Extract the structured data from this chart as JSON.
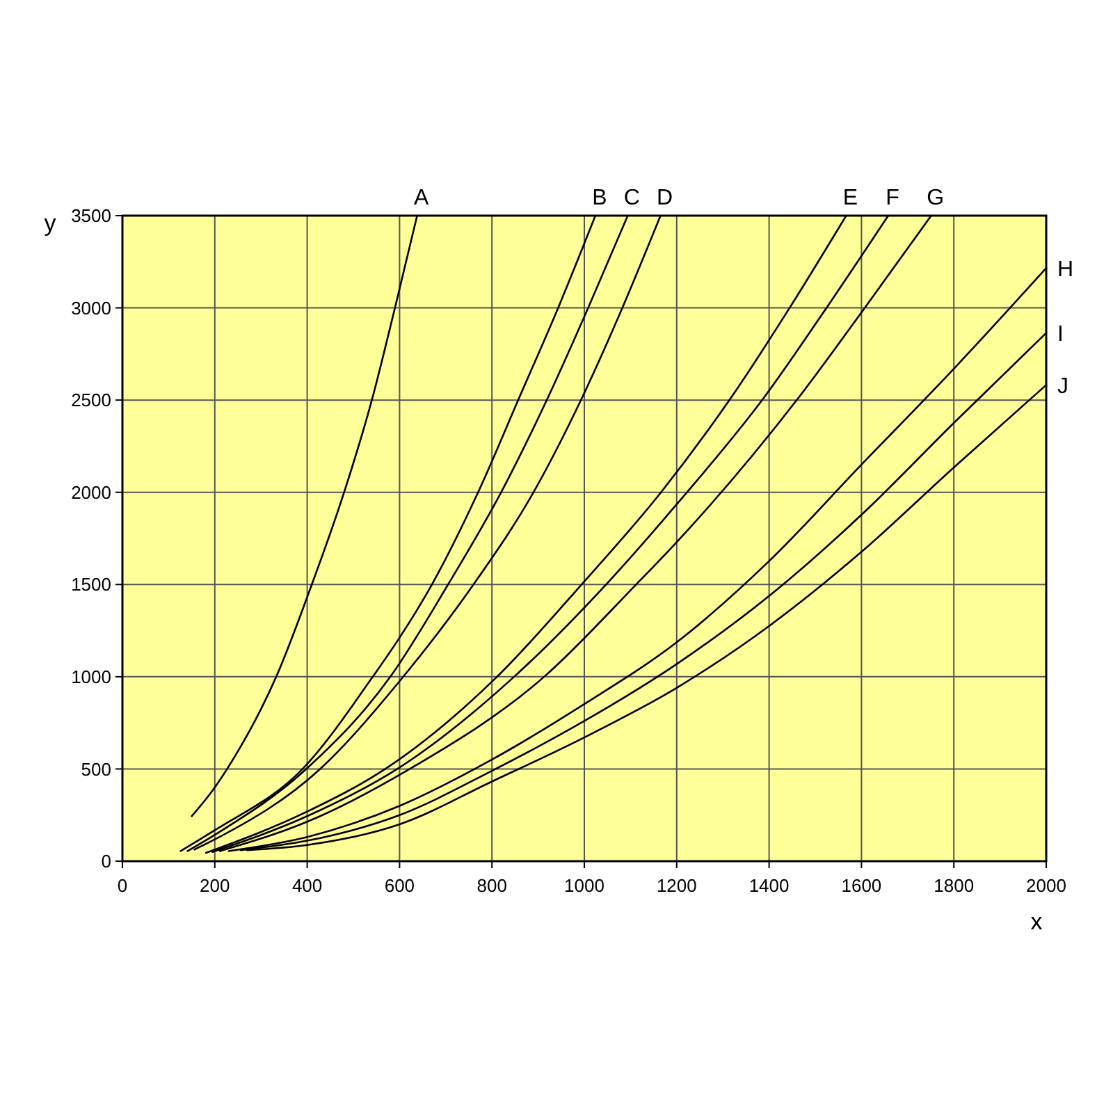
{
  "chart_data": {
    "type": "line",
    "xlabel": "x",
    "ylabel": "y",
    "xlim": [
      0,
      2000
    ],
    "ylim": [
      0,
      3500
    ],
    "xticks": [
      0,
      200,
      400,
      600,
      800,
      1000,
      1200,
      1400,
      1600,
      1800,
      2000
    ],
    "yticks": [
      0,
      500,
      1000,
      1500,
      2000,
      2500,
      3000,
      3500
    ],
    "grid": true,
    "line_style": "solid",
    "series": [
      {
        "name": "A",
        "color": "#000000",
        "x": [
          150,
          200,
          251,
          295,
          333,
          410,
          480,
          540,
          590,
          638
        ],
        "values": [
          244,
          400,
          600,
          800,
          1000,
          1500,
          2000,
          2500,
          3000,
          3500
        ]
      },
      {
        "name": "B",
        "color": "#000000",
        "x": [
          126,
          200,
          390,
          542,
          600,
          670,
          770,
          858,
          945,
          1024
        ],
        "values": [
          55,
          168,
          500,
          1000,
          1212,
          1500,
          2000,
          2507,
          3010,
          3500
        ]
      },
      {
        "name": "C",
        "color": "#000000",
        "x": [
          141,
          200,
          398,
          580,
          705,
          820,
          920,
          1010,
          1094
        ],
        "values": [
          55,
          143,
          500,
          1000,
          1500,
          2000,
          2507,
          3010,
          3500
        ]
      },
      {
        "name": "D",
        "color": "#000000",
        "x": [
          156,
          200,
          428,
          600,
          760,
          890,
          994,
          1084,
          1165
        ],
        "values": [
          63,
          118,
          500,
          976,
          1500,
          2000,
          2507,
          3010,
          3500
        ]
      },
      {
        "name": "E",
        "color": "#000000",
        "x": [
          181,
          400,
          569,
          811,
          994,
          1166,
          1316,
          1447,
          1567
        ],
        "values": [
          45,
          269,
          500,
          1000,
          1500,
          2000,
          2507,
          3010,
          3500
        ]
      },
      {
        "name": "F",
        "color": "#000000",
        "x": [
          195,
          400,
          595,
          848,
          1047,
          1200,
          1387,
          1527,
          1658
        ],
        "values": [
          50,
          244,
          500,
          1000,
          1500,
          1935,
          2507,
          3010,
          3500
        ]
      },
      {
        "name": "G",
        "color": "#000000",
        "x": [
          211,
          400,
          622,
          913,
          1112,
          1200,
          1462,
          1610,
          1751
        ],
        "values": [
          55,
          214,
          500,
          1000,
          1500,
          1730,
          2507,
          3010,
          3500
        ]
      },
      {
        "name": "H",
        "color": "#000000",
        "x": [
          230,
          400,
          600,
          800,
          1000,
          1200,
          1400,
          1600,
          1800,
          2000
        ],
        "values": [
          55,
          131,
          300,
          551,
          852,
          1187,
          1627,
          2150,
          2670,
          3216
        ]
      },
      {
        "name": "I",
        "color": "#000000",
        "x": [
          256,
          400,
          600,
          800,
          1000,
          1200,
          1400,
          1600,
          1800,
          2000
        ],
        "values": [
          60,
          111,
          250,
          490,
          760,
          1069,
          1438,
          1878,
          2376,
          2864
        ]
      },
      {
        "name": "J",
        "color": "#000000",
        "x": [
          270,
          400,
          600,
          800,
          1000,
          1200,
          1400,
          1600,
          1800,
          2000
        ],
        "values": [
          60,
          88,
          200,
          432,
          671,
          940,
          1275,
          1677,
          2135,
          2582
        ]
      }
    ]
  }
}
